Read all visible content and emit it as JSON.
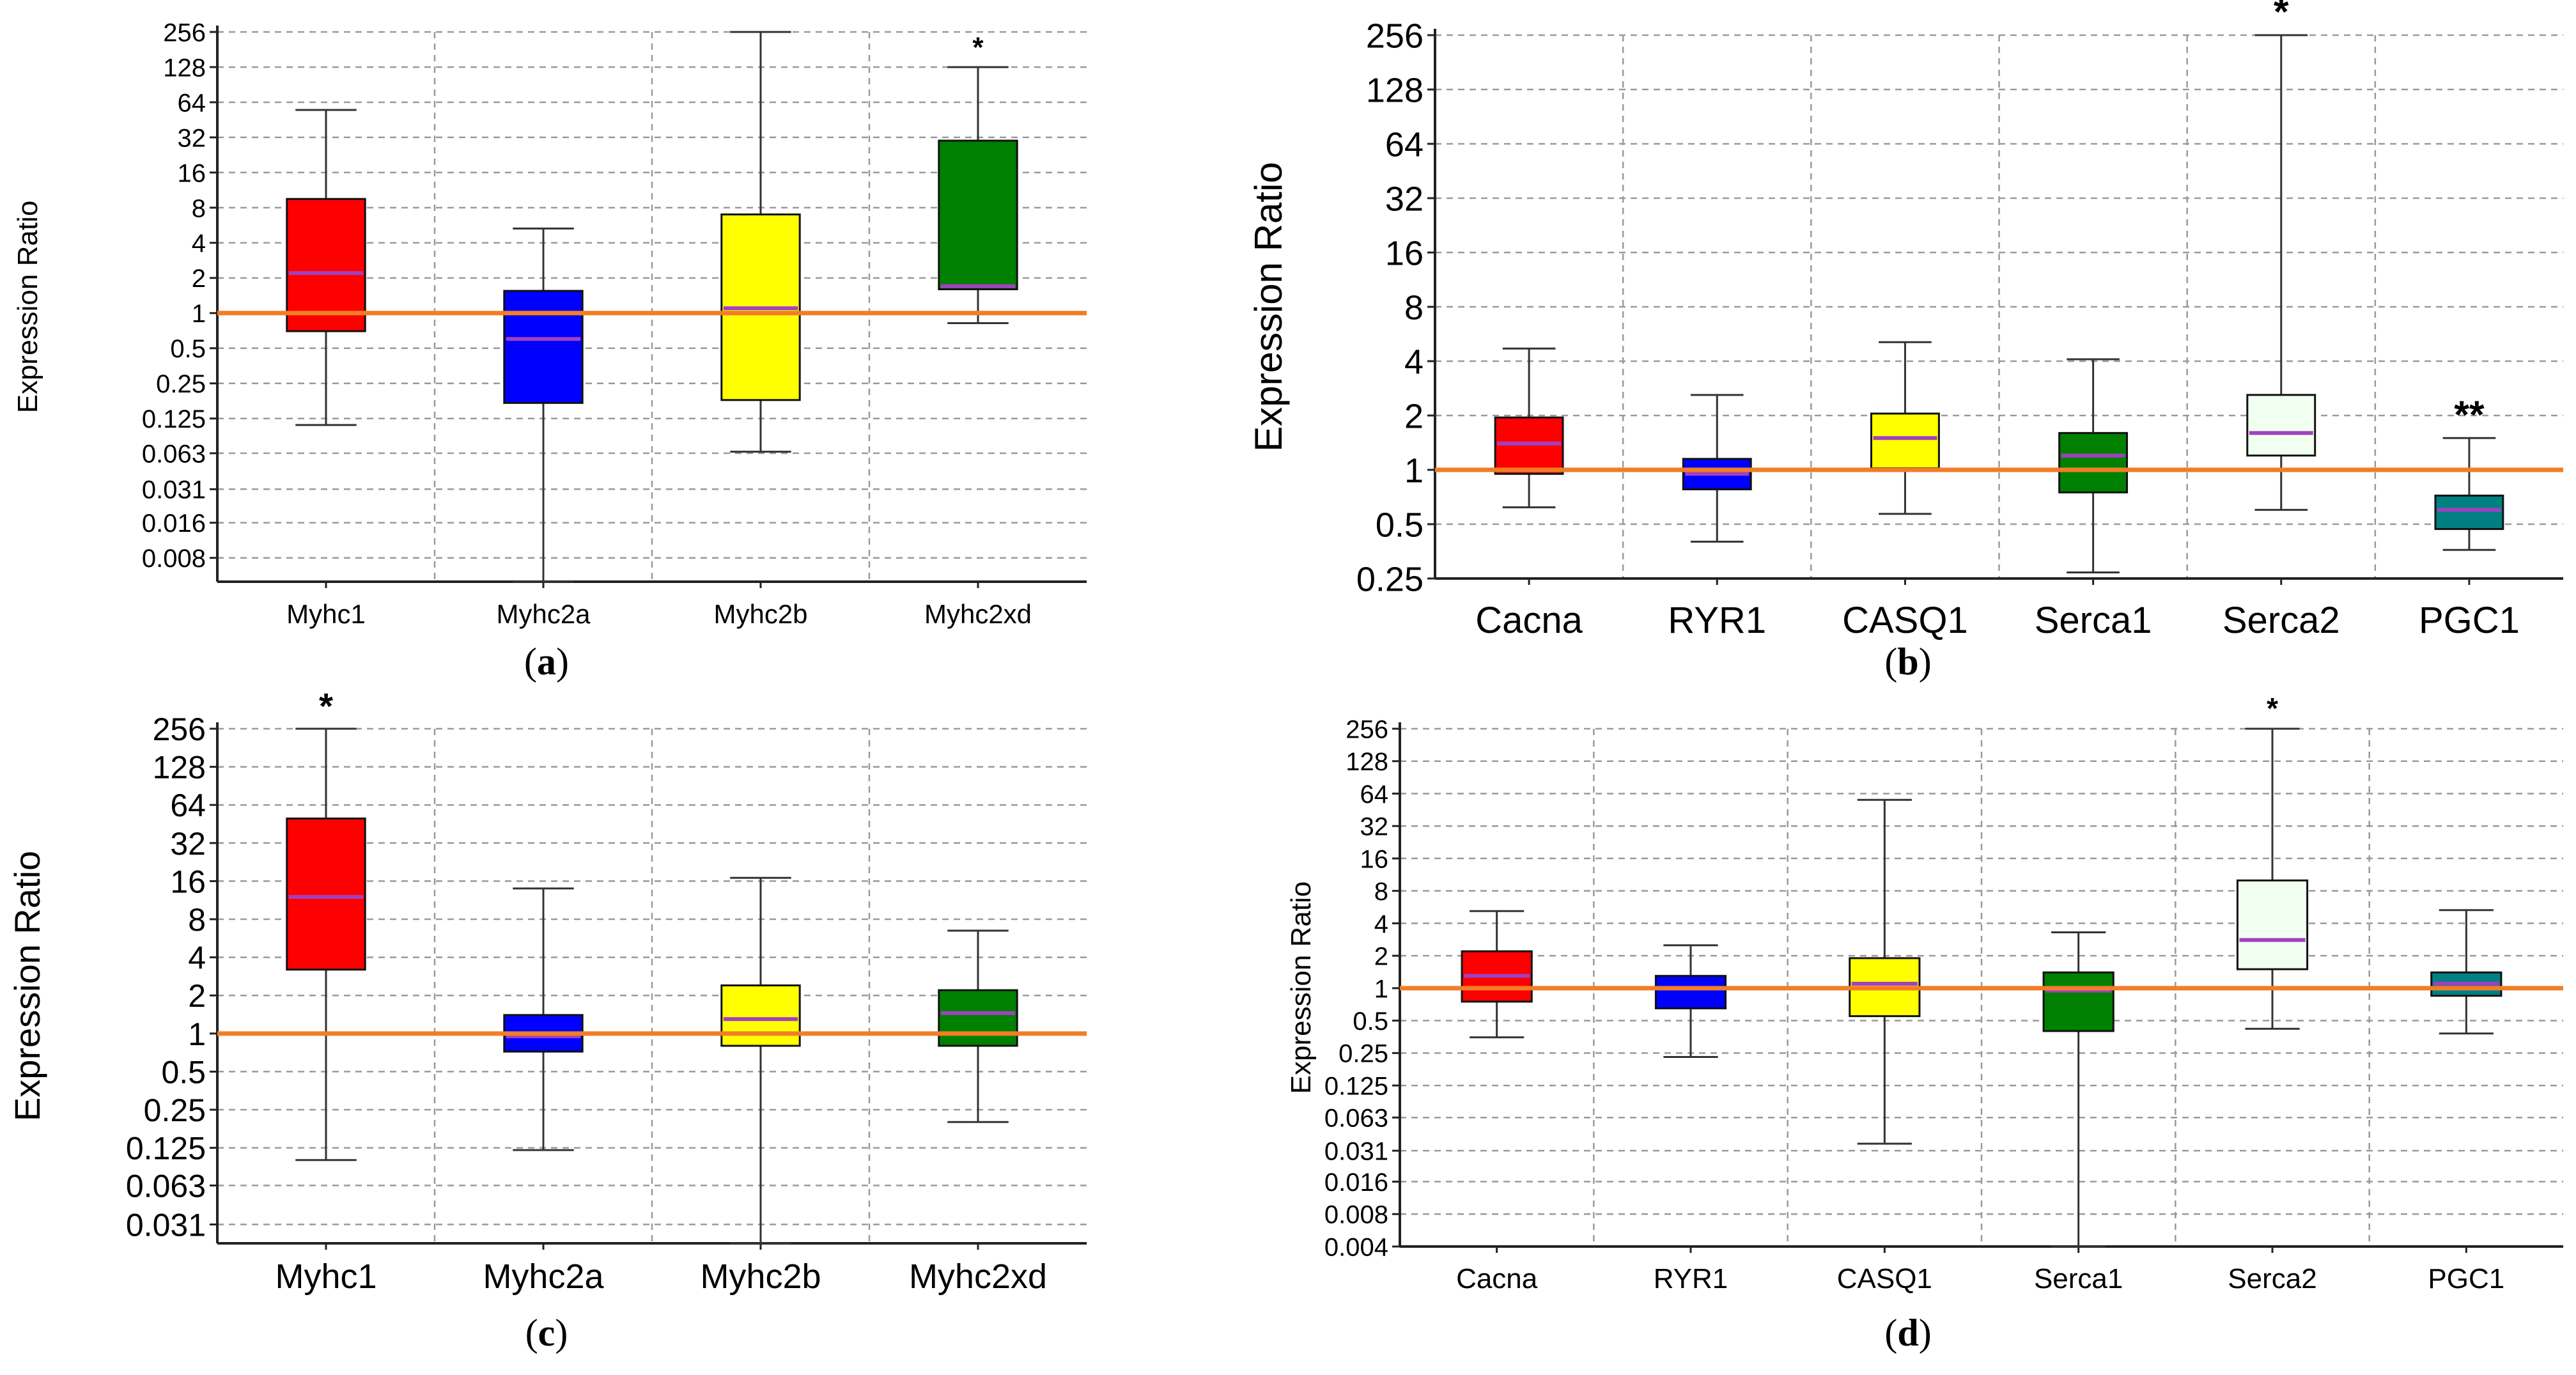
{
  "figure": {
    "reference_line_color": "#f07e26",
    "median_color": "#a040c0",
    "gridline_color": "#9a9a9a",
    "axis_color": "#222222",
    "whisker_color": "#333333"
  },
  "chart_data": [
    {
      "type": "box",
      "caption": "(a)",
      "caption_letter": "a",
      "ylabel": "Expression Ratio",
      "yscale": "log2",
      "ylim": [
        0.005,
        256
      ],
      "yticks": [
        "256",
        "128",
        "64",
        "32",
        "16",
        "8",
        "4",
        "2",
        "1",
        "0.5",
        "0.25",
        "0.125",
        "0.063",
        "0.031",
        "0.016",
        "0.008"
      ],
      "reference_line": 1,
      "grid": true,
      "categories": [
        "Myhc1",
        "Myhc2a",
        "Myhc2b",
        "Myhc2xd"
      ],
      "boxes": [
        {
          "name": "Myhc1",
          "color": "#ff0000",
          "whisker_low": 0.11,
          "q1": 0.7,
          "median": 2.2,
          "q3": 9.5,
          "whisker_high": 55,
          "annotation": ""
        },
        {
          "name": "Myhc2a",
          "color": "#0000ff",
          "whisker_low": 0.005,
          "q1": 0.17,
          "median": 0.6,
          "q3": 1.55,
          "whisker_high": 5.3,
          "annotation": ""
        },
        {
          "name": "Myhc2b",
          "color": "#ffff00",
          "whisker_low": 0.065,
          "q1": 0.18,
          "median": 1.1,
          "q3": 7,
          "whisker_high": 256,
          "annotation": ""
        },
        {
          "name": "Myhc2xd",
          "color": "#008000",
          "whisker_low": 0.82,
          "q1": 1.6,
          "median": 1.7,
          "q3": 30,
          "whisker_high": 128,
          "annotation": "*"
        }
      ]
    },
    {
      "type": "box",
      "caption": "(b)",
      "caption_letter": "b",
      "ylabel": "Expression Ratio",
      "yscale": "log2",
      "ylim": [
        0.25,
        256
      ],
      "yticks": [
        "256",
        "128",
        "64",
        "32",
        "16",
        "8",
        "4",
        "2",
        "1",
        "0.5",
        "0.25"
      ],
      "reference_line": 1,
      "grid": true,
      "categories": [
        "Cacna",
        "RYR1",
        "CASQ1",
        "Serca1",
        "Serca2",
        "PGC1"
      ],
      "boxes": [
        {
          "name": "Cacna",
          "color": "#ff0000",
          "whisker_low": 0.62,
          "q1": 0.95,
          "median": 1.4,
          "q3": 1.95,
          "whisker_high": 4.7,
          "annotation": ""
        },
        {
          "name": "RYR1",
          "color": "#0000ff",
          "whisker_low": 0.4,
          "q1": 0.78,
          "median": 0.95,
          "q3": 1.15,
          "whisker_high": 2.6,
          "annotation": ""
        },
        {
          "name": "CASQ1",
          "color": "#ffff00",
          "whisker_low": 0.57,
          "q1": 1.02,
          "median": 1.5,
          "q3": 2.05,
          "whisker_high": 5.1,
          "annotation": ""
        },
        {
          "name": "Serca1",
          "color": "#008000",
          "whisker_low": 0.27,
          "q1": 0.75,
          "median": 1.2,
          "q3": 1.6,
          "whisker_high": 4.1,
          "annotation": ""
        },
        {
          "name": "Serca2",
          "color": "#f0fff0",
          "whisker_low": 0.6,
          "q1": 1.2,
          "median": 1.6,
          "q3": 2.6,
          "whisker_high": 256,
          "annotation": "*"
        },
        {
          "name": "PGC1",
          "color": "#008080",
          "whisker_low": 0.36,
          "q1": 0.47,
          "median": 0.6,
          "q3": 0.72,
          "whisker_high": 1.5,
          "annotation": "**"
        }
      ]
    },
    {
      "type": "box",
      "caption": "(c)",
      "caption_letter": "c",
      "ylabel": "Expression Ratio",
      "yscale": "log2",
      "ylim": [
        0.022,
        256
      ],
      "yticks": [
        "256",
        "128",
        "64",
        "32",
        "16",
        "8",
        "4",
        "2",
        "1",
        "0.5",
        "0.25",
        "0.125",
        "0.063",
        "0.031"
      ],
      "reference_line": 1,
      "grid": true,
      "categories": [
        "Myhc1",
        "Myhc2a",
        "Myhc2b",
        "Myhc2xd"
      ],
      "boxes": [
        {
          "name": "Myhc1",
          "color": "#ff0000",
          "whisker_low": 0.1,
          "q1": 3.2,
          "median": 12,
          "q3": 50,
          "whisker_high": 256,
          "annotation": "*"
        },
        {
          "name": "Myhc2a",
          "color": "#0000ff",
          "whisker_low": 0.12,
          "q1": 0.72,
          "median": 0.95,
          "q3": 1.4,
          "whisker_high": 14,
          "annotation": ""
        },
        {
          "name": "Myhc2b",
          "color": "#ffff00",
          "whisker_low": 0.022,
          "q1": 0.8,
          "median": 1.3,
          "q3": 2.4,
          "whisker_high": 17,
          "annotation": ""
        },
        {
          "name": "Myhc2xd",
          "color": "#008000",
          "whisker_low": 0.2,
          "q1": 0.8,
          "median": 1.45,
          "q3": 2.2,
          "whisker_high": 6.5,
          "annotation": ""
        }
      ]
    },
    {
      "type": "box",
      "caption": "(d)",
      "caption_letter": "d",
      "ylabel": "Expression Ratio",
      "yscale": "log2",
      "ylim": [
        0.004,
        256
      ],
      "yticks": [
        "256",
        "128",
        "64",
        "32",
        "16",
        "8",
        "4",
        "2",
        "1",
        "0.5",
        "0.25",
        "0.125",
        "0.063",
        "0.031",
        "0.016",
        "0.008",
        "0.004"
      ],
      "reference_line": 1,
      "grid": true,
      "categories": [
        "Cacna",
        "RYR1",
        "CASQ1",
        "Serca1",
        "Serca2",
        "PGC1"
      ],
      "boxes": [
        {
          "name": "Cacna",
          "color": "#ff0000",
          "whisker_low": 0.35,
          "q1": 0.75,
          "median": 1.3,
          "q3": 2.2,
          "whisker_high": 5.2,
          "annotation": ""
        },
        {
          "name": "RYR1",
          "color": "#0000ff",
          "whisker_low": 0.23,
          "q1": 0.65,
          "median": 1.0,
          "q3": 1.3,
          "whisker_high": 2.5,
          "annotation": ""
        },
        {
          "name": "CASQ1",
          "color": "#ffff00",
          "whisker_low": 0.036,
          "q1": 0.55,
          "median": 1.1,
          "q3": 1.9,
          "whisker_high": 56,
          "annotation": ""
        },
        {
          "name": "Serca1",
          "color": "#008000",
          "whisker_low": 0.004,
          "q1": 0.4,
          "median": 0.95,
          "q3": 1.4,
          "whisker_high": 3.3,
          "annotation": ""
        },
        {
          "name": "Serca2",
          "color": "#f0fff0",
          "whisker_low": 0.42,
          "q1": 1.5,
          "median": 2.8,
          "q3": 10,
          "whisker_high": 256,
          "annotation": "*"
        },
        {
          "name": "PGC1",
          "color": "#008080",
          "whisker_low": 0.38,
          "q1": 0.85,
          "median": 1.1,
          "q3": 1.4,
          "whisker_high": 5.3,
          "annotation": ""
        }
      ]
    }
  ]
}
